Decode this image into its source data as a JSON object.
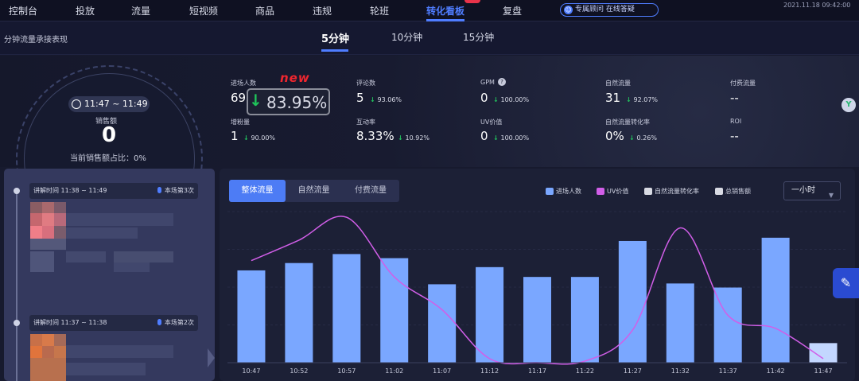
{
  "nav": {
    "items": [
      "控制台",
      "投放",
      "流量",
      "短视频",
      "商品",
      "违规",
      "轮班",
      "转化看板",
      "复盘"
    ],
    "active": "转化看板",
    "help_label": "专属顾问 在线答疑",
    "datetime": "2021.11.18 09:42:00"
  },
  "section": {
    "title": "分钟流量承接表现",
    "tabs": [
      "5分钟",
      "10分钟",
      "15分钟"
    ],
    "active_tab": "5分钟"
  },
  "gauge": {
    "time_range": "11:47 ~ 11:49",
    "sales_label": "销售额",
    "sales_value": "0",
    "ratio_label": "当前销售额占比：0%"
  },
  "annotation": {
    "new_tag": "new"
  },
  "metrics": [
    {
      "label": "进场人数",
      "value": "69",
      "trend": "83.95%",
      "highlight": true
    },
    {
      "label": "评论数",
      "value": "5",
      "trend": "93.06%"
    },
    {
      "label": "GPM",
      "value": "0",
      "trend": "100.00%",
      "info_icon": true
    },
    {
      "label": "自然流量",
      "value": "31",
      "trend": "92.07%"
    },
    {
      "label": "付费流量",
      "value": "--",
      "trend": ""
    },
    {
      "label": "增粉量",
      "value": "1",
      "trend": "90.00%"
    },
    {
      "label": "互动率",
      "value": "8.33%",
      "trend": "10.92%"
    },
    {
      "label": "UV价值",
      "value": "0",
      "trend": "100.00%"
    },
    {
      "label": "自然流量转化率",
      "value": "0%",
      "trend": "0.26%"
    },
    {
      "label": "ROI",
      "value": "--",
      "trend": ""
    }
  ],
  "episodes": [
    {
      "time": "讲解时间 11:38 ~ 11:49",
      "index": "本场第3次"
    },
    {
      "time": "讲解时间 11:37 ~ 11:38",
      "index": "本场第2次"
    }
  ],
  "chart_controls": {
    "segments": [
      "整体流量",
      "自然流量",
      "付费流量"
    ],
    "active_segment": "整体流量",
    "legend": [
      {
        "name": "进场人数",
        "color": "#7aa7ff"
      },
      {
        "name": "UV价值",
        "color": "#d15ee8"
      },
      {
        "name": "自然流量转化率",
        "color": "#d8dae3"
      },
      {
        "name": "总销售额",
        "color": "#d8dae3"
      }
    ],
    "range_select": "一小时"
  },
  "chart_data": {
    "type": "bar",
    "categories": [
      "10:47",
      "10:52",
      "10:57",
      "11:02",
      "11:07",
      "11:12",
      "11:17",
      "11:22",
      "11:27",
      "11:32",
      "11:37",
      "11:42",
      "11:47"
    ],
    "series": [
      {
        "name": "进场人数",
        "type": "bar",
        "color": "#7aa7ff",
        "values": [
          113,
          122,
          133,
          128,
          96,
          117,
          105,
          105,
          149,
          97,
          92,
          153,
          24
        ]
      },
      {
        "name": "UV价值",
        "type": "line",
        "color": "#d15ee8",
        "values": [
          125,
          150,
          178,
          105,
          65,
          5,
          0,
          2,
          40,
          165,
          58,
          42,
          5
        ]
      }
    ],
    "ylim": [
      0,
      185
    ],
    "grid": true,
    "last_bar_partial": true
  }
}
